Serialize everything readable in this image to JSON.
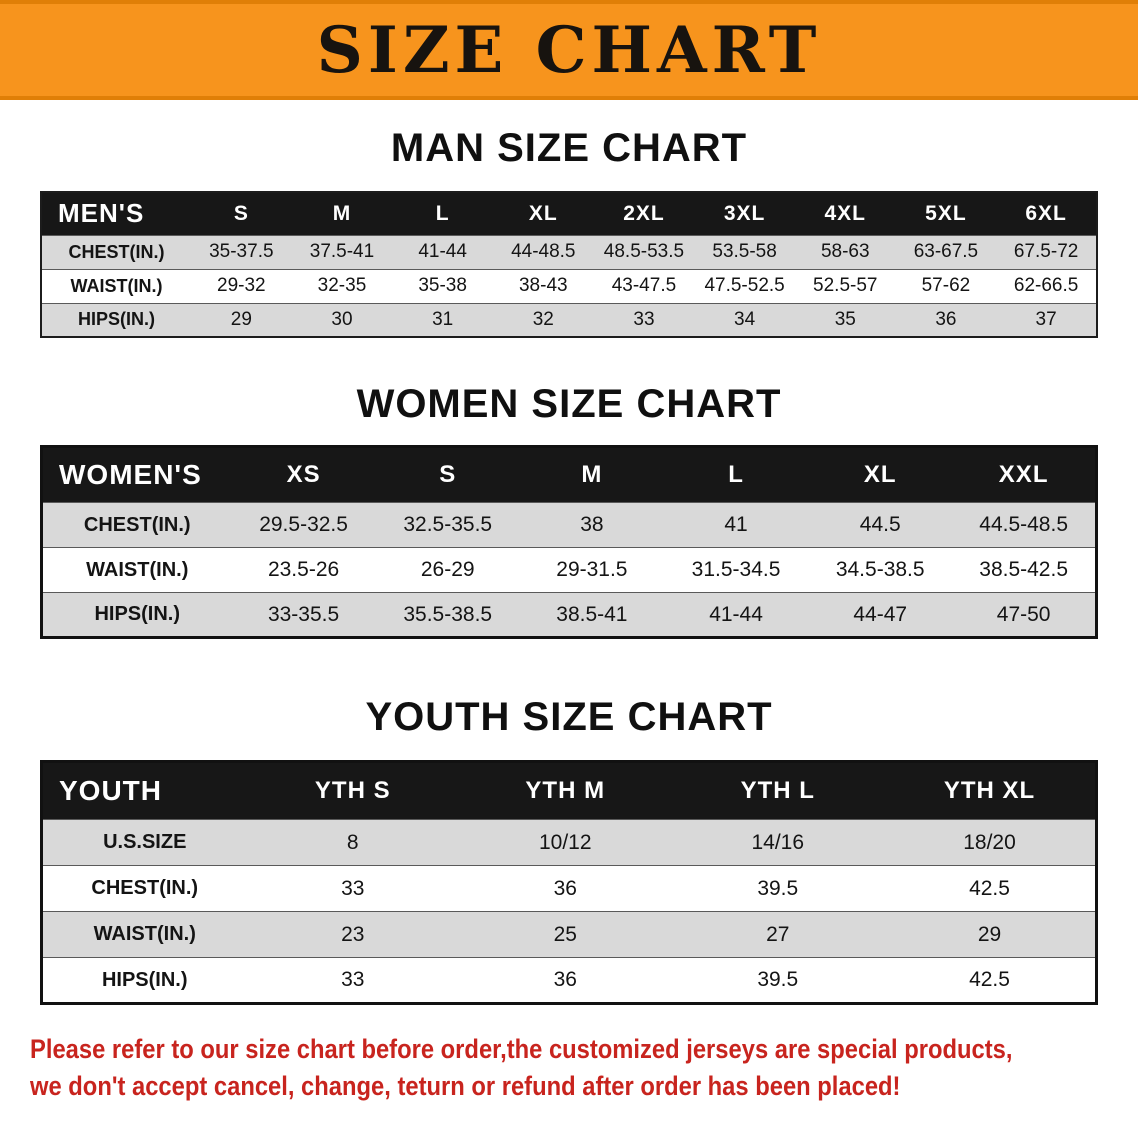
{
  "banner": {
    "title": "SIZE CHART",
    "bg_color": "#F7941D"
  },
  "tables": {
    "men": {
      "heading": "MAN SIZE CHART",
      "header": [
        "MEN'S",
        "S",
        "M",
        "L",
        "XL",
        "2XL",
        "3XL",
        "4XL",
        "5XL",
        "6XL"
      ],
      "rows": [
        {
          "label": "CHEST(IN.)",
          "values": [
            "35-37.5",
            "37.5-41",
            "41-44",
            "44-48.5",
            "48.5-53.5",
            "53.5-58",
            "58-63",
            "63-67.5",
            "67.5-72"
          ]
        },
        {
          "label": "WAIST(IN.)",
          "values": [
            "29-32",
            "32-35",
            "35-38",
            "38-43",
            "43-47.5",
            "47.5-52.5",
            "52.5-57",
            "57-62",
            "62-66.5"
          ]
        },
        {
          "label": "HIPS(IN.)",
          "values": [
            "29",
            "30",
            "31",
            "32",
            "33",
            "34",
            "35",
            "36",
            "37"
          ]
        }
      ]
    },
    "women": {
      "heading": "WOMEN SIZE CHART",
      "header": [
        "WOMEN'S",
        "XS",
        "S",
        "M",
        "L",
        "XL",
        "XXL"
      ],
      "rows": [
        {
          "label": "CHEST(IN.)",
          "values": [
            "29.5-32.5",
            "32.5-35.5",
            "38",
            "41",
            "44.5",
            "44.5-48.5"
          ]
        },
        {
          "label": "WAIST(IN.)",
          "values": [
            "23.5-26",
            "26-29",
            "29-31.5",
            "31.5-34.5",
            "34.5-38.5",
            "38.5-42.5"
          ]
        },
        {
          "label": "HIPS(IN.)",
          "values": [
            "33-35.5",
            "35.5-38.5",
            "38.5-41",
            "41-44",
            "44-47",
            "47-50"
          ]
        }
      ]
    },
    "youth": {
      "heading": "YOUTH SIZE CHART",
      "header": [
        "YOUTH",
        "YTH S",
        "YTH M",
        "YTH L",
        "YTH XL"
      ],
      "rows": [
        {
          "label": "U.S.SIZE",
          "values": [
            "8",
            "10/12",
            "14/16",
            "18/20"
          ]
        },
        {
          "label": "CHEST(IN.)",
          "values": [
            "33",
            "36",
            "39.5",
            "42.5"
          ]
        },
        {
          "label": "WAIST(IN.)",
          "values": [
            "23",
            "25",
            "27",
            "29"
          ]
        },
        {
          "label": "HIPS(IN.)",
          "values": [
            "33",
            "36",
            "39.5",
            "42.5"
          ]
        }
      ]
    }
  },
  "footer": {
    "color": "#C8241E",
    "line1": "Please refer to our size chart before order,the customized jerseys are special products,",
    "line2": "we don't accept cancel, change, teturn or refund after order has been placed!"
  }
}
